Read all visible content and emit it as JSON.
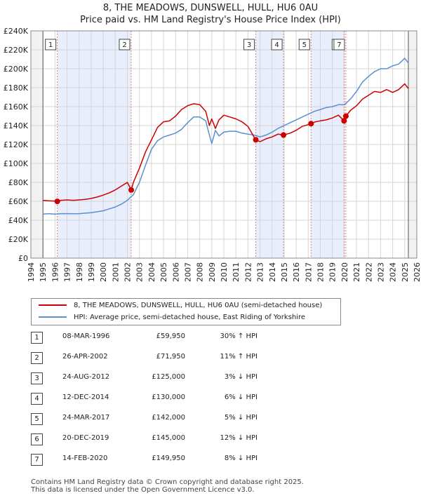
{
  "title_line1": "8, THE MEADOWS, DUNSWELL, HULL, HU6 0AU",
  "title_line2": "Price paid vs. HM Land Registry's House Price Index (HPI)",
  "legend": {
    "property": "8, THE MEADOWS, DUNSWELL, HULL, HU6 0AU (semi-detached house)",
    "hpi": "HPI: Average price, semi-detached house, East Riding of Yorkshire"
  },
  "colors": {
    "property": "#cc0000",
    "hpi": "#5b8fd0",
    "shade": "#e8eefb",
    "grid": "#d5d5d5"
  },
  "transactions": [
    {
      "num": "1",
      "date": "08-MAR-1996",
      "price": "£59,950",
      "hpi": "30% ↑ HPI"
    },
    {
      "num": "2",
      "date": "26-APR-2002",
      "price": "£71,950",
      "hpi": "11% ↑ HPI"
    },
    {
      "num": "3",
      "date": "24-AUG-2012",
      "price": "£125,000",
      "hpi": "3% ↓ HPI"
    },
    {
      "num": "4",
      "date": "12-DEC-2014",
      "price": "£130,000",
      "hpi": "6% ↓ HPI"
    },
    {
      "num": "5",
      "date": "24-MAR-2017",
      "price": "£142,000",
      "hpi": "5% ↓ HPI"
    },
    {
      "num": "6",
      "date": "20-DEC-2019",
      "price": "£145,000",
      "hpi": "12% ↓ HPI"
    },
    {
      "num": "7",
      "date": "14-FEB-2020",
      "price": "£149,950",
      "hpi": "8% ↓ HPI"
    }
  ],
  "footer": {
    "line1": "Contains HM Land Registry data © Crown copyright and database right 2025.",
    "line2": "This data is licensed under the Open Government Licence v3.0."
  },
  "chart_data": {
    "type": "line",
    "title": "8, THE MEADOWS, DUNSWELL, HULL, HU6 0AU — Price paid vs. HM Land Registry's House Price Index (HPI)",
    "xlim": [
      1994,
      2026
    ],
    "ylim": [
      0,
      240000
    ],
    "x_ticks": [
      "1994",
      "1995",
      "1996",
      "1997",
      "1998",
      "1999",
      "2000",
      "2001",
      "2002",
      "2003",
      "2004",
      "2005",
      "2006",
      "2007",
      "2008",
      "2009",
      "2010",
      "2011",
      "2012",
      "2013",
      "2014",
      "2015",
      "2016",
      "2017",
      "2018",
      "2019",
      "2020",
      "2021",
      "2022",
      "2023",
      "2024",
      "2025",
      "2026"
    ],
    "y_ticks": [
      {
        "value": 0,
        "label": "£0"
      },
      {
        "value": 20000,
        "label": "£20K"
      },
      {
        "value": 40000,
        "label": "£40K"
      },
      {
        "value": 60000,
        "label": "£60K"
      },
      {
        "value": 80000,
        "label": "£80K"
      },
      {
        "value": 100000,
        "label": "£100K"
      },
      {
        "value": 120000,
        "label": "£120K"
      },
      {
        "value": 140000,
        "label": "£140K"
      },
      {
        "value": 160000,
        "label": "£160K"
      },
      {
        "value": 180000,
        "label": "£180K"
      },
      {
        "value": 200000,
        "label": "£200K"
      },
      {
        "value": 220000,
        "label": "£220K"
      },
      {
        "value": 240000,
        "label": "£240K"
      }
    ],
    "data_start": 1995.0,
    "data_end": 2025.3,
    "sales": [
      {
        "label": "1",
        "x": 1996.19,
        "y": 59950
      },
      {
        "label": "2",
        "x": 2002.32,
        "y": 71950
      },
      {
        "label": "3",
        "x": 2012.65,
        "y": 125000
      },
      {
        "label": "4",
        "x": 2014.95,
        "y": 130000
      },
      {
        "label": "5",
        "x": 2017.23,
        "y": 142000
      },
      {
        "label": "6",
        "x": 2019.97,
        "y": 145000
      },
      {
        "label": "7",
        "x": 2020.12,
        "y": 149950
      }
    ],
    "series": [
      {
        "name": "8, THE MEADOWS, DUNSWELL, HULL, HU6 0AU (semi-detached house)",
        "x": [
          1995.0,
          1995.5,
          1996.0,
          1996.19,
          1996.5,
          1997.0,
          1997.5,
          1998.0,
          1998.5,
          1999.0,
          1999.5,
          2000.0,
          2000.5,
          2001.0,
          2001.5,
          2002.0,
          2002.32,
          2002.5,
          2003.0,
          2003.5,
          2004.0,
          2004.5,
          2005.0,
          2005.5,
          2006.0,
          2006.5,
          2007.0,
          2007.5,
          2008.0,
          2008.5,
          2008.8,
          2009.0,
          2009.3,
          2009.6,
          2010.0,
          2010.5,
          2011.0,
          2011.5,
          2012.0,
          2012.5,
          2012.65,
          2013.0,
          2013.5,
          2014.0,
          2014.5,
          2014.95,
          2015.5,
          2016.0,
          2016.5,
          2017.0,
          2017.23,
          2017.6,
          2018.0,
          2018.5,
          2019.0,
          2019.5,
          2019.97,
          2020.12,
          2020.5,
          2021.0,
          2021.5,
          2022.0,
          2022.5,
          2023.0,
          2023.5,
          2024.0,
          2024.5,
          2025.0,
          2025.3
        ],
        "y": [
          61000,
          60500,
          60200,
          59950,
          61000,
          61500,
          61000,
          61500,
          62000,
          63000,
          64500,
          66500,
          69000,
          72000,
          76000,
          80000,
          71950,
          80000,
          95000,
          112000,
          125000,
          138000,
          144000,
          145000,
          150000,
          157000,
          161000,
          163000,
          162000,
          155000,
          140000,
          147000,
          137000,
          146000,
          151000,
          149000,
          147000,
          144000,
          139000,
          128000,
          125000,
          123000,
          126000,
          128000,
          131000,
          130000,
          132000,
          135000,
          139000,
          141000,
          142000,
          144000,
          145000,
          146000,
          148000,
          151000,
          145000,
          149950,
          156000,
          161000,
          168000,
          172000,
          176000,
          175000,
          178000,
          175000,
          178000,
          184000,
          179000
        ]
      },
      {
        "name": "HPI: Average price, semi-detached house, East Riding of Yorkshire",
        "x": [
          1995.0,
          1995.5,
          1996.0,
          1996.5,
          1997.0,
          1997.5,
          1998.0,
          1998.5,
          1999.0,
          1999.5,
          2000.0,
          2000.5,
          2001.0,
          2001.5,
          2002.0,
          2002.5,
          2003.0,
          2003.5,
          2004.0,
          2004.5,
          2005.0,
          2005.5,
          2006.0,
          2006.5,
          2007.0,
          2007.5,
          2008.0,
          2008.5,
          2008.8,
          2009.0,
          2009.3,
          2009.6,
          2010.0,
          2010.5,
          2011.0,
          2011.5,
          2012.0,
          2012.5,
          2013.0,
          2013.5,
          2014.0,
          2014.5,
          2015.0,
          2015.5,
          2016.0,
          2016.5,
          2017.0,
          2017.5,
          2018.0,
          2018.5,
          2019.0,
          2019.5,
          2020.0,
          2020.5,
          2021.0,
          2021.5,
          2022.0,
          2022.5,
          2023.0,
          2023.5,
          2024.0,
          2024.5,
          2025.0,
          2025.3
        ],
        "y": [
          46500,
          47000,
          46500,
          47000,
          47000,
          46800,
          47000,
          47500,
          48000,
          49000,
          50000,
          52000,
          54000,
          57000,
          61000,
          67000,
          80000,
          98000,
          115000,
          124000,
          128000,
          130000,
          132000,
          136000,
          143000,
          149000,
          149000,
          145000,
          130000,
          121000,
          135000,
          129000,
          133000,
          134000,
          134000,
          132000,
          131000,
          130000,
          128000,
          130000,
          133000,
          137000,
          140000,
          143000,
          146000,
          149000,
          152000,
          155000,
          157000,
          159000,
          160000,
          162000,
          162000,
          168000,
          176000,
          186000,
          192000,
          197000,
          200000,
          200000,
          203000,
          205000,
          211000,
          206000
        ]
      }
    ]
  }
}
